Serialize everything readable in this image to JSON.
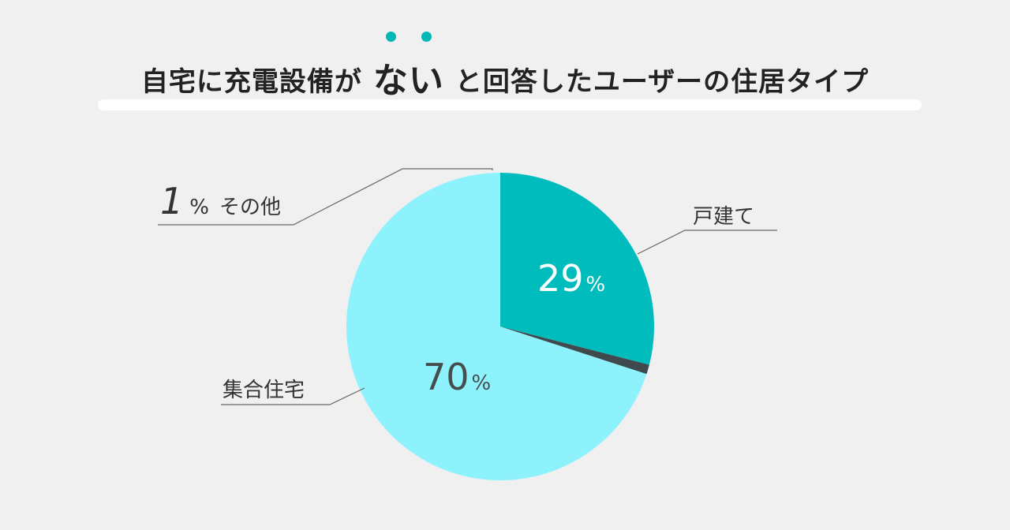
{
  "title": {
    "prefix": "自宅に充電設備が",
    "emphasis": "ない",
    "suffix": "と回答したユーザーの住居タイプ"
  },
  "chart_data": {
    "type": "pie",
    "categories": [
      "戸建て",
      "その他",
      "集合住宅"
    ],
    "values": [
      29,
      1,
      70
    ],
    "unit": "%",
    "colors": [
      "#00bcbc",
      "#3f4a4c",
      "#8ef2fd"
    ],
    "value_label_colors": [
      "#ffffff",
      "#333333",
      "#454d4f"
    ]
  }
}
